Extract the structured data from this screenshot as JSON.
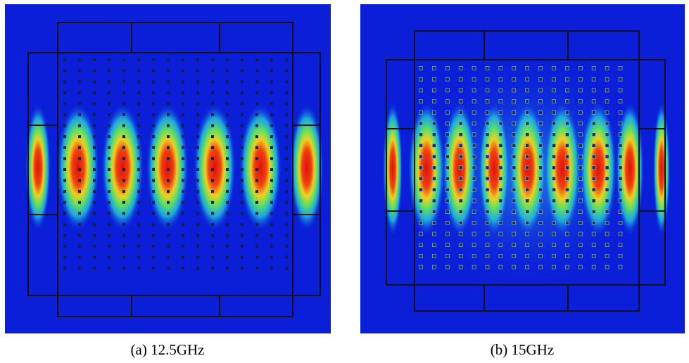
{
  "figure": {
    "panels": [
      {
        "caption": "(a) 12.5GHz"
      },
      {
        "caption": "(b) 15GHz"
      }
    ]
  }
}
